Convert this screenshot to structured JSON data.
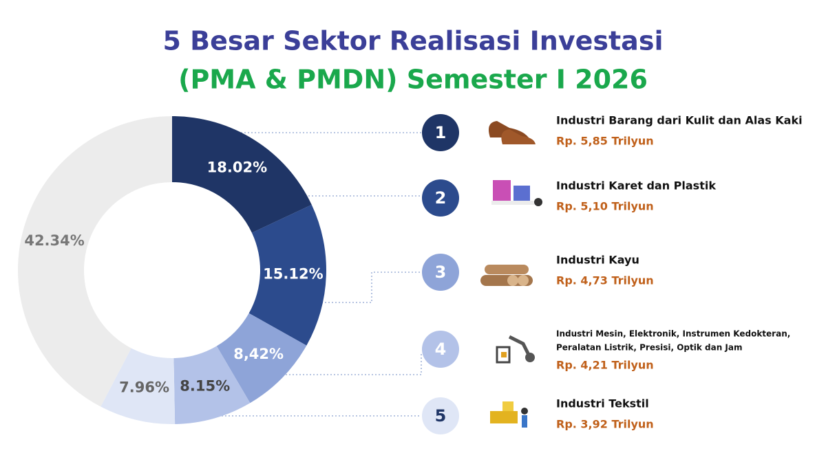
{
  "chart_data": {
    "type": "pie",
    "title": "5 Besar Sektor Realisasi Investasi",
    "subtitle": "(PMA & PMDN) Semester I 2026",
    "values": [
      18.02,
      15.12,
      8.42,
      8.15,
      7.96,
      42.34
    ],
    "value_labels": [
      "18.02%",
      "15.12%",
      "8,42%",
      "8.15%",
      "7.96%",
      "42.34%"
    ],
    "colors": [
      "#1f3566",
      "#2c4b8d",
      "#8ea4d8",
      "#b3c2e8",
      "#dfe6f6",
      "#ececec"
    ],
    "label_colors": [
      "#ffffff",
      "#ffffff",
      "#ffffff",
      "#444444",
      "#666666",
      "#777777"
    ],
    "items": [
      {
        "rank": "1",
        "name": [
          "Industri Barang dari Kulit dan Alas Kaki"
        ],
        "amount": "Rp. 5,85 Trilyun"
      },
      {
        "rank": "2",
        "name": [
          "Industri Karet dan Plastik"
        ],
        "amount": "Rp. 5,10 Trilyun"
      },
      {
        "rank": "3",
        "name": [
          "Industri Kayu"
        ],
        "amount": "Rp. 4,73 Trilyun"
      },
      {
        "rank": "4",
        "name": [
          "Industri  Mesin, Elektronik, Instrumen Kedokteran,",
          "Peralatan Listrik, Presisi, Optik dan Jam"
        ],
        "amount": "Rp. 4,21 Trilyun"
      },
      {
        "rank": "5",
        "name": [
          "Industri Tekstil"
        ],
        "amount": "Rp. 3,92 Trilyun"
      }
    ]
  }
}
